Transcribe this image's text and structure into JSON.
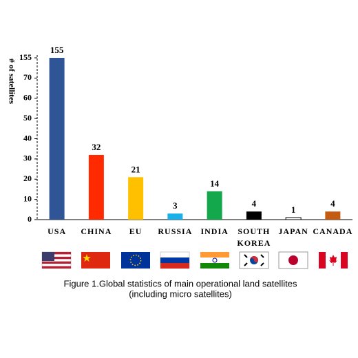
{
  "chart_data": {
    "type": "bar",
    "y_label": "# of satellites",
    "categories": [
      "USA",
      "CHINA",
      "EU",
      "RUSSIA",
      "INDIA",
      "SOUTH KOREA",
      "JAPAN",
      "CANADA"
    ],
    "values": [
      155,
      32,
      21,
      3,
      14,
      4,
      1,
      4
    ],
    "colors": [
      "#2f5597",
      "#ff2a00",
      "#ffc000",
      "#1ab0ea",
      "#12a84b",
      "#000000",
      "#ffffff",
      "#c55a11"
    ],
    "ylim": [
      0,
      155
    ],
    "yticks": [
      0,
      10,
      20,
      30,
      40,
      50,
      60,
      70,
      155
    ],
    "axis_break": true,
    "caption": [
      "Figure 1.Global statistics of main operational land satellites",
      "(including micro satellites)"
    ]
  }
}
